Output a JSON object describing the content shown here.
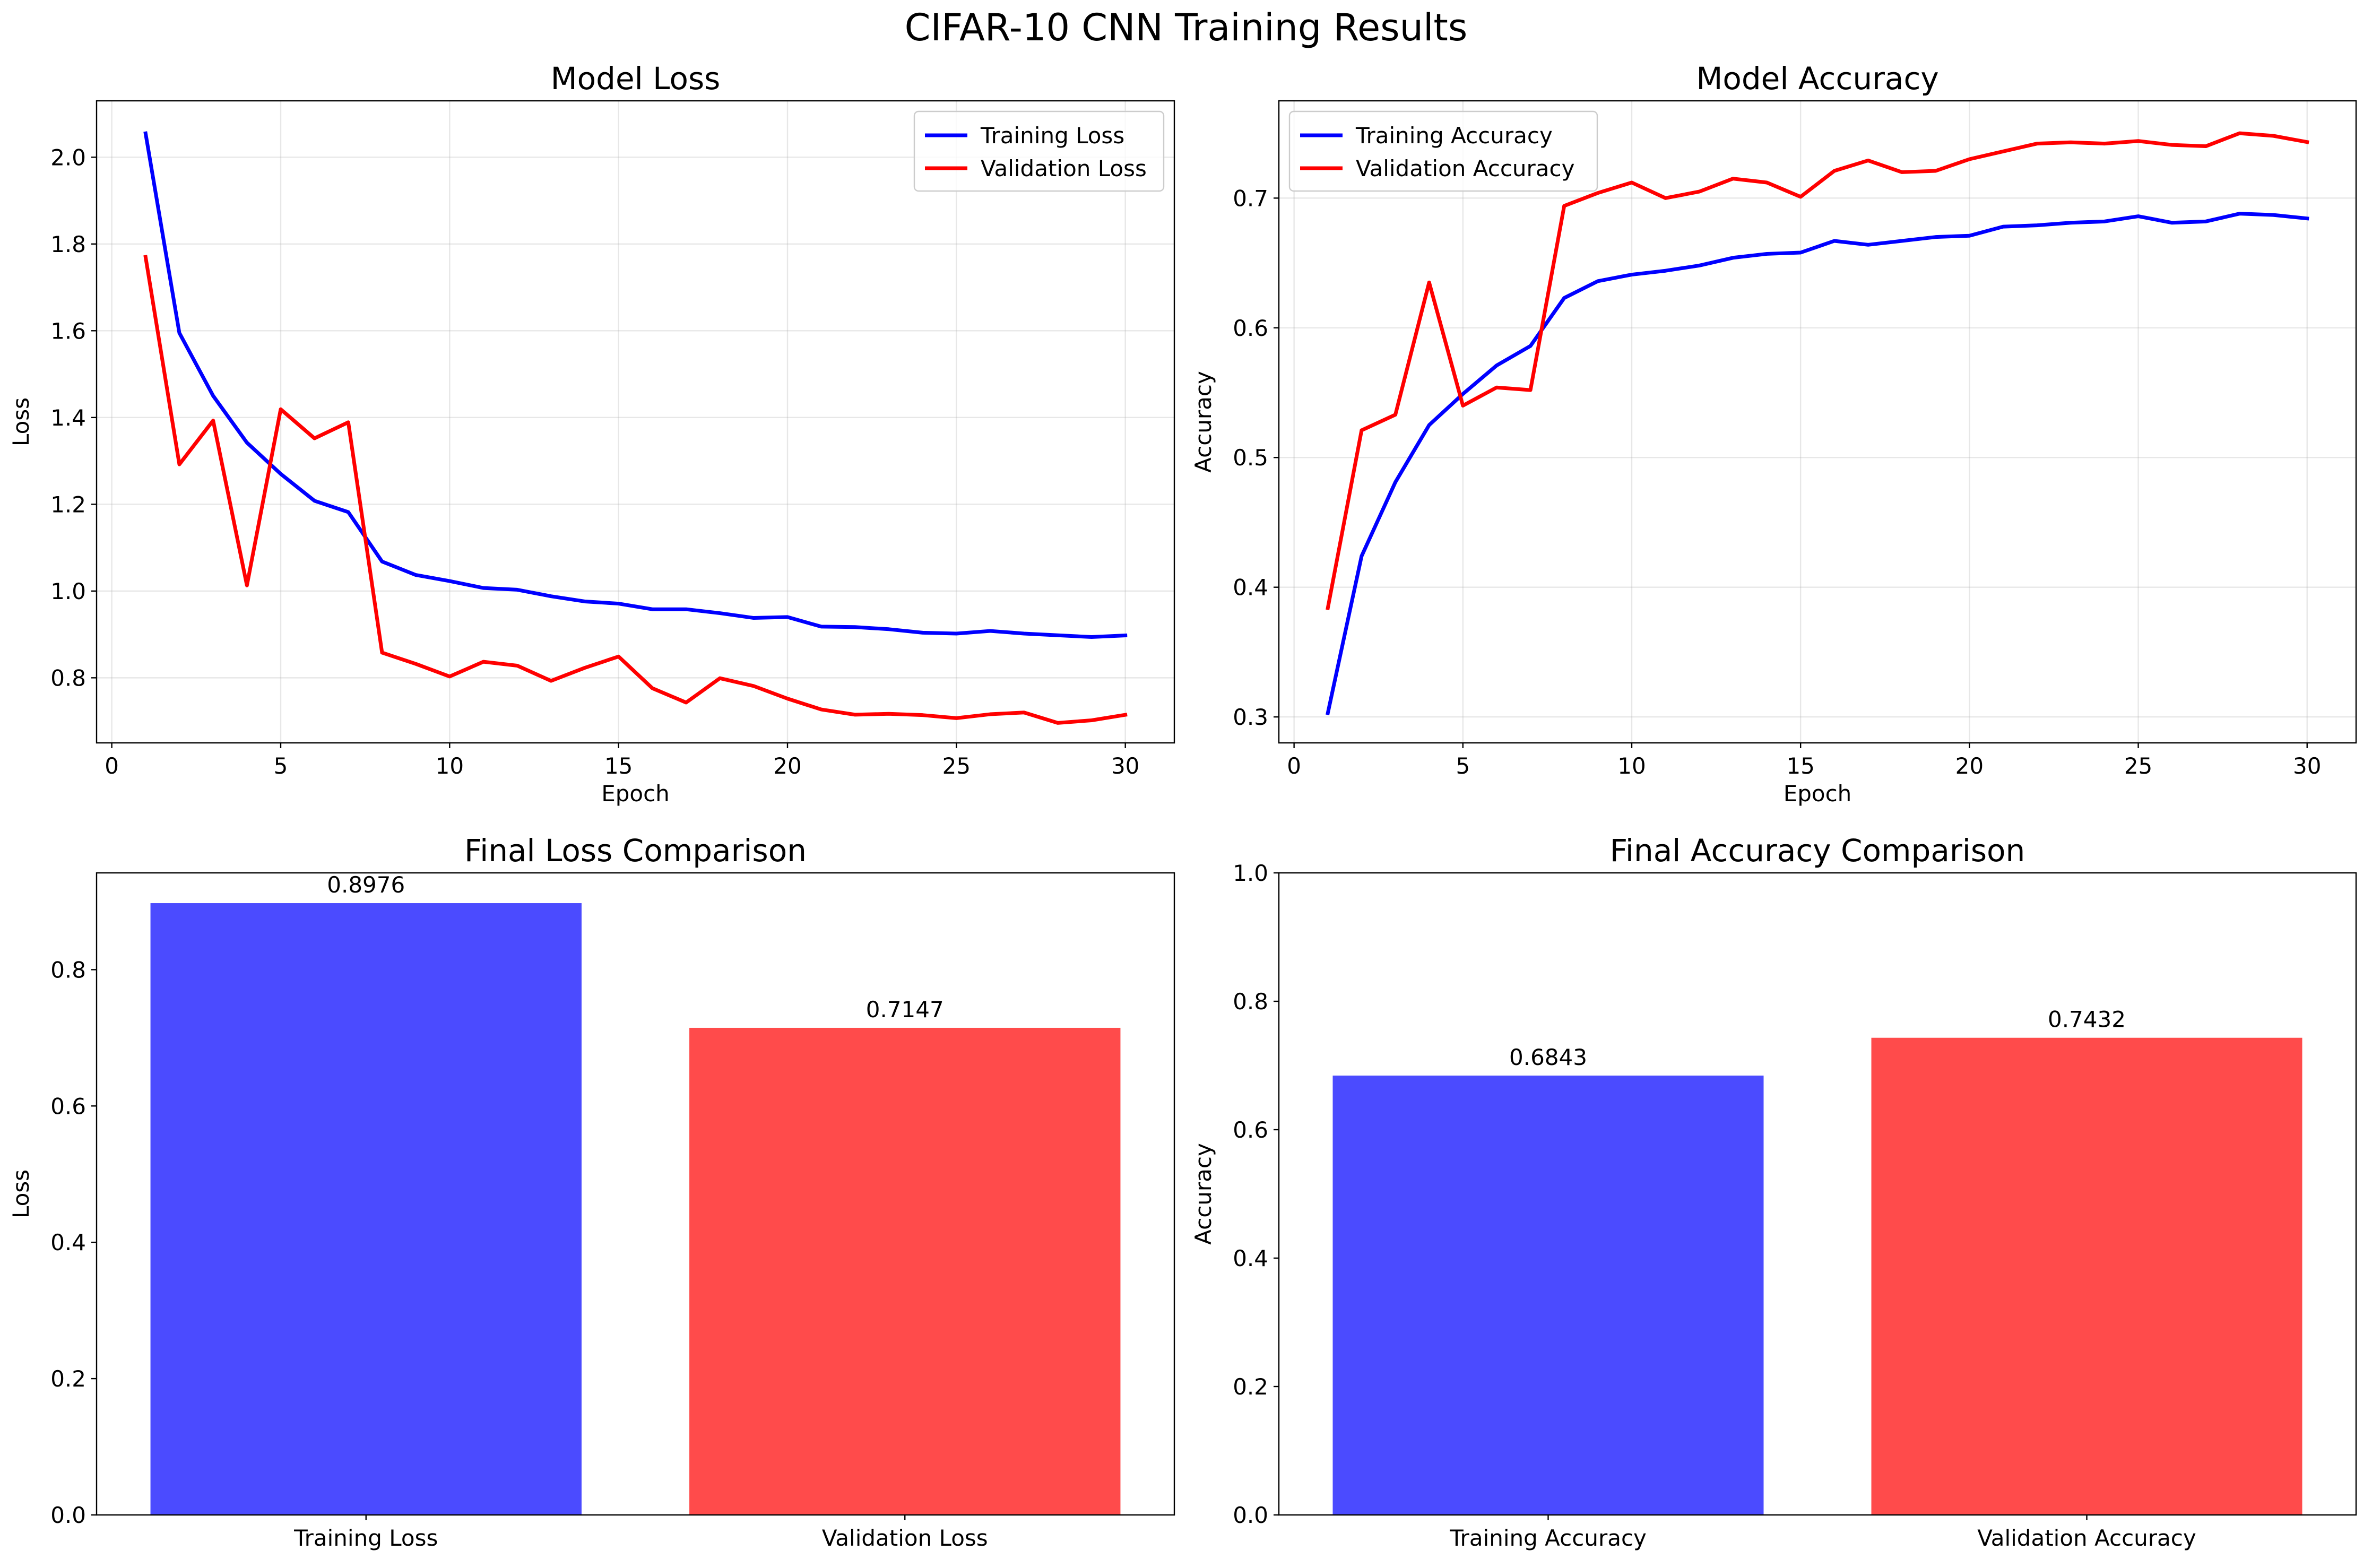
{
  "suptitle": "CIFAR-10 CNN Training Results",
  "chart_data": [
    {
      "type": "line",
      "title": "Model Loss",
      "xlabel": "Epoch",
      "ylabel": "Loss",
      "xlim": [
        -0.45,
        31.45
      ],
      "ylim": [
        0.65,
        2.13
      ],
      "xticks": [
        0,
        5,
        10,
        15,
        20,
        25,
        30
      ],
      "yticks": [
        0.8,
        1.0,
        1.2,
        1.4,
        1.6,
        1.8,
        2.0
      ],
      "ytick_decimals": 1,
      "grid": true,
      "legend": "upper right",
      "x": [
        1,
        2,
        3,
        4,
        5,
        6,
        7,
        8,
        9,
        10,
        11,
        12,
        13,
        14,
        15,
        16,
        17,
        18,
        19,
        20,
        21,
        22,
        23,
        24,
        25,
        26,
        27,
        28,
        29,
        30
      ],
      "series": [
        {
          "name": "Training Loss",
          "color": "#0000ff",
          "values": [
            2.055,
            1.595,
            1.45,
            1.342,
            1.27,
            1.208,
            1.182,
            1.068,
            1.037,
            1.023,
            1.007,
            1.003,
            0.988,
            0.976,
            0.971,
            0.958,
            0.958,
            0.949,
            0.938,
            0.94,
            0.918,
            0.917,
            0.912,
            0.904,
            0.902,
            0.908,
            0.902,
            0.898,
            0.894,
            0.8976
          ]
        },
        {
          "name": "Validation Loss",
          "color": "#ff0000",
          "values": [
            1.77,
            1.292,
            1.393,
            1.013,
            1.419,
            1.352,
            1.389,
            0.858,
            0.832,
            0.803,
            0.837,
            0.828,
            0.793,
            0.823,
            0.849,
            0.776,
            0.743,
            0.799,
            0.781,
            0.752,
            0.727,
            0.715,
            0.717,
            0.714,
            0.707,
            0.716,
            0.72,
            0.696,
            0.702,
            0.7147
          ]
        }
      ]
    },
    {
      "type": "line",
      "title": "Model Accuracy",
      "xlabel": "Epoch",
      "ylabel": "Accuracy",
      "xlim": [
        -0.45,
        31.45
      ],
      "ylim": [
        0.28,
        0.775
      ],
      "xticks": [
        0,
        5,
        10,
        15,
        20,
        25,
        30
      ],
      "yticks": [
        0.3,
        0.4,
        0.5,
        0.6,
        0.7
      ],
      "ytick_decimals": 1,
      "grid": true,
      "legend": "upper left",
      "x": [
        1,
        2,
        3,
        4,
        5,
        6,
        7,
        8,
        9,
        10,
        11,
        12,
        13,
        14,
        15,
        16,
        17,
        18,
        19,
        20,
        21,
        22,
        23,
        24,
        25,
        26,
        27,
        28,
        29,
        30
      ],
      "series": [
        {
          "name": "Training Accuracy",
          "color": "#0000ff",
          "values": [
            0.303,
            0.424,
            0.481,
            0.525,
            0.549,
            0.571,
            0.586,
            0.623,
            0.636,
            0.641,
            0.644,
            0.648,
            0.654,
            0.657,
            0.658,
            0.667,
            0.664,
            0.667,
            0.67,
            0.671,
            0.678,
            0.679,
            0.681,
            0.682,
            0.686,
            0.681,
            0.682,
            0.688,
            0.687,
            0.6843
          ]
        },
        {
          "name": "Validation Accuracy",
          "color": "#ff0000",
          "values": [
            0.384,
            0.521,
            0.533,
            0.635,
            0.54,
            0.554,
            0.552,
            0.694,
            0.704,
            0.712,
            0.7,
            0.705,
            0.715,
            0.712,
            0.701,
            0.721,
            0.729,
            0.72,
            0.721,
            0.73,
            0.736,
            0.742,
            0.743,
            0.742,
            0.744,
            0.741,
            0.74,
            0.75,
            0.748,
            0.7432
          ]
        }
      ]
    },
    {
      "type": "bar",
      "title": "Final Loss Comparison",
      "xlabel": "",
      "ylabel": "Loss",
      "ylim": [
        0,
        0.942
      ],
      "yticks": [
        0.0,
        0.2,
        0.4,
        0.6,
        0.8
      ],
      "ytick_decimals": 1,
      "grid": false,
      "categories": [
        "Training Loss",
        "Validation Loss"
      ],
      "values": [
        0.8976,
        0.7147
      ],
      "value_labels": [
        "0.8976",
        "0.7147"
      ],
      "colors": [
        "#4b4bff",
        "#ff4b4b"
      ]
    },
    {
      "type": "bar",
      "title": "Final Accuracy Comparison",
      "xlabel": "",
      "ylabel": "Accuracy",
      "ylim": [
        0,
        1.0
      ],
      "yticks": [
        0.0,
        0.2,
        0.4,
        0.6,
        0.8,
        1.0
      ],
      "ytick_decimals": 1,
      "grid": false,
      "categories": [
        "Training Accuracy",
        "Validation Accuracy"
      ],
      "values": [
        0.6843,
        0.7432
      ],
      "value_labels": [
        "0.6843",
        "0.7432"
      ],
      "colors": [
        "#4b4bff",
        "#ff4b4b"
      ]
    }
  ]
}
